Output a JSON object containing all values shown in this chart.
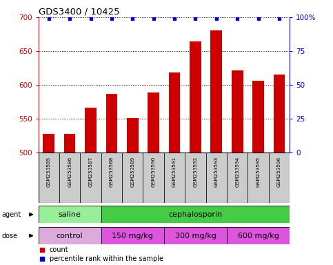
{
  "title": "GDS3400 / 10425",
  "samples": [
    "GSM253585",
    "GSM253586",
    "GSM253587",
    "GSM253588",
    "GSM253589",
    "GSM253590",
    "GSM253591",
    "GSM253592",
    "GSM253593",
    "GSM253594",
    "GSM253595",
    "GSM253596"
  ],
  "counts": [
    527,
    527,
    566,
    587,
    551,
    589,
    618,
    664,
    681,
    621,
    606,
    615
  ],
  "percentile_ranks": [
    99,
    99,
    99,
    99,
    99,
    99,
    99,
    99,
    99,
    99,
    99,
    99
  ],
  "bar_color": "#cc0000",
  "dot_color": "#0000cc",
  "ylim_left": [
    500,
    700
  ],
  "ylim_right": [
    0,
    100
  ],
  "yticks_left": [
    500,
    550,
    600,
    650,
    700
  ],
  "yticks_right": [
    0,
    25,
    50,
    75,
    100
  ],
  "ytick_labels_right": [
    "0",
    "25",
    "50",
    "75",
    "100%"
  ],
  "grid_color": "#000000",
  "agent_groups": [
    {
      "label": "saline",
      "start": 0,
      "end": 3,
      "color": "#99ee99"
    },
    {
      "label": "cephalosporin",
      "start": 3,
      "end": 12,
      "color": "#44cc44"
    }
  ],
  "dose_groups": [
    {
      "label": "control",
      "start": 0,
      "end": 3,
      "color": "#ddaadd"
    },
    {
      "label": "150 mg/kg",
      "start": 3,
      "end": 6,
      "color": "#dd55dd"
    },
    {
      "label": "300 mg/kg",
      "start": 6,
      "end": 9,
      "color": "#dd55dd"
    },
    {
      "label": "600 mg/kg",
      "start": 9,
      "end": 12,
      "color": "#dd55dd"
    }
  ],
  "legend_items": [
    {
      "label": "count",
      "color": "#cc0000"
    },
    {
      "label": "percentile rank within the sample",
      "color": "#0000cc"
    }
  ],
  "tick_color_left": "#cc0000",
  "tick_color_right": "#0000cc",
  "sample_bg_color": "#cccccc",
  "bar_width": 0.55
}
